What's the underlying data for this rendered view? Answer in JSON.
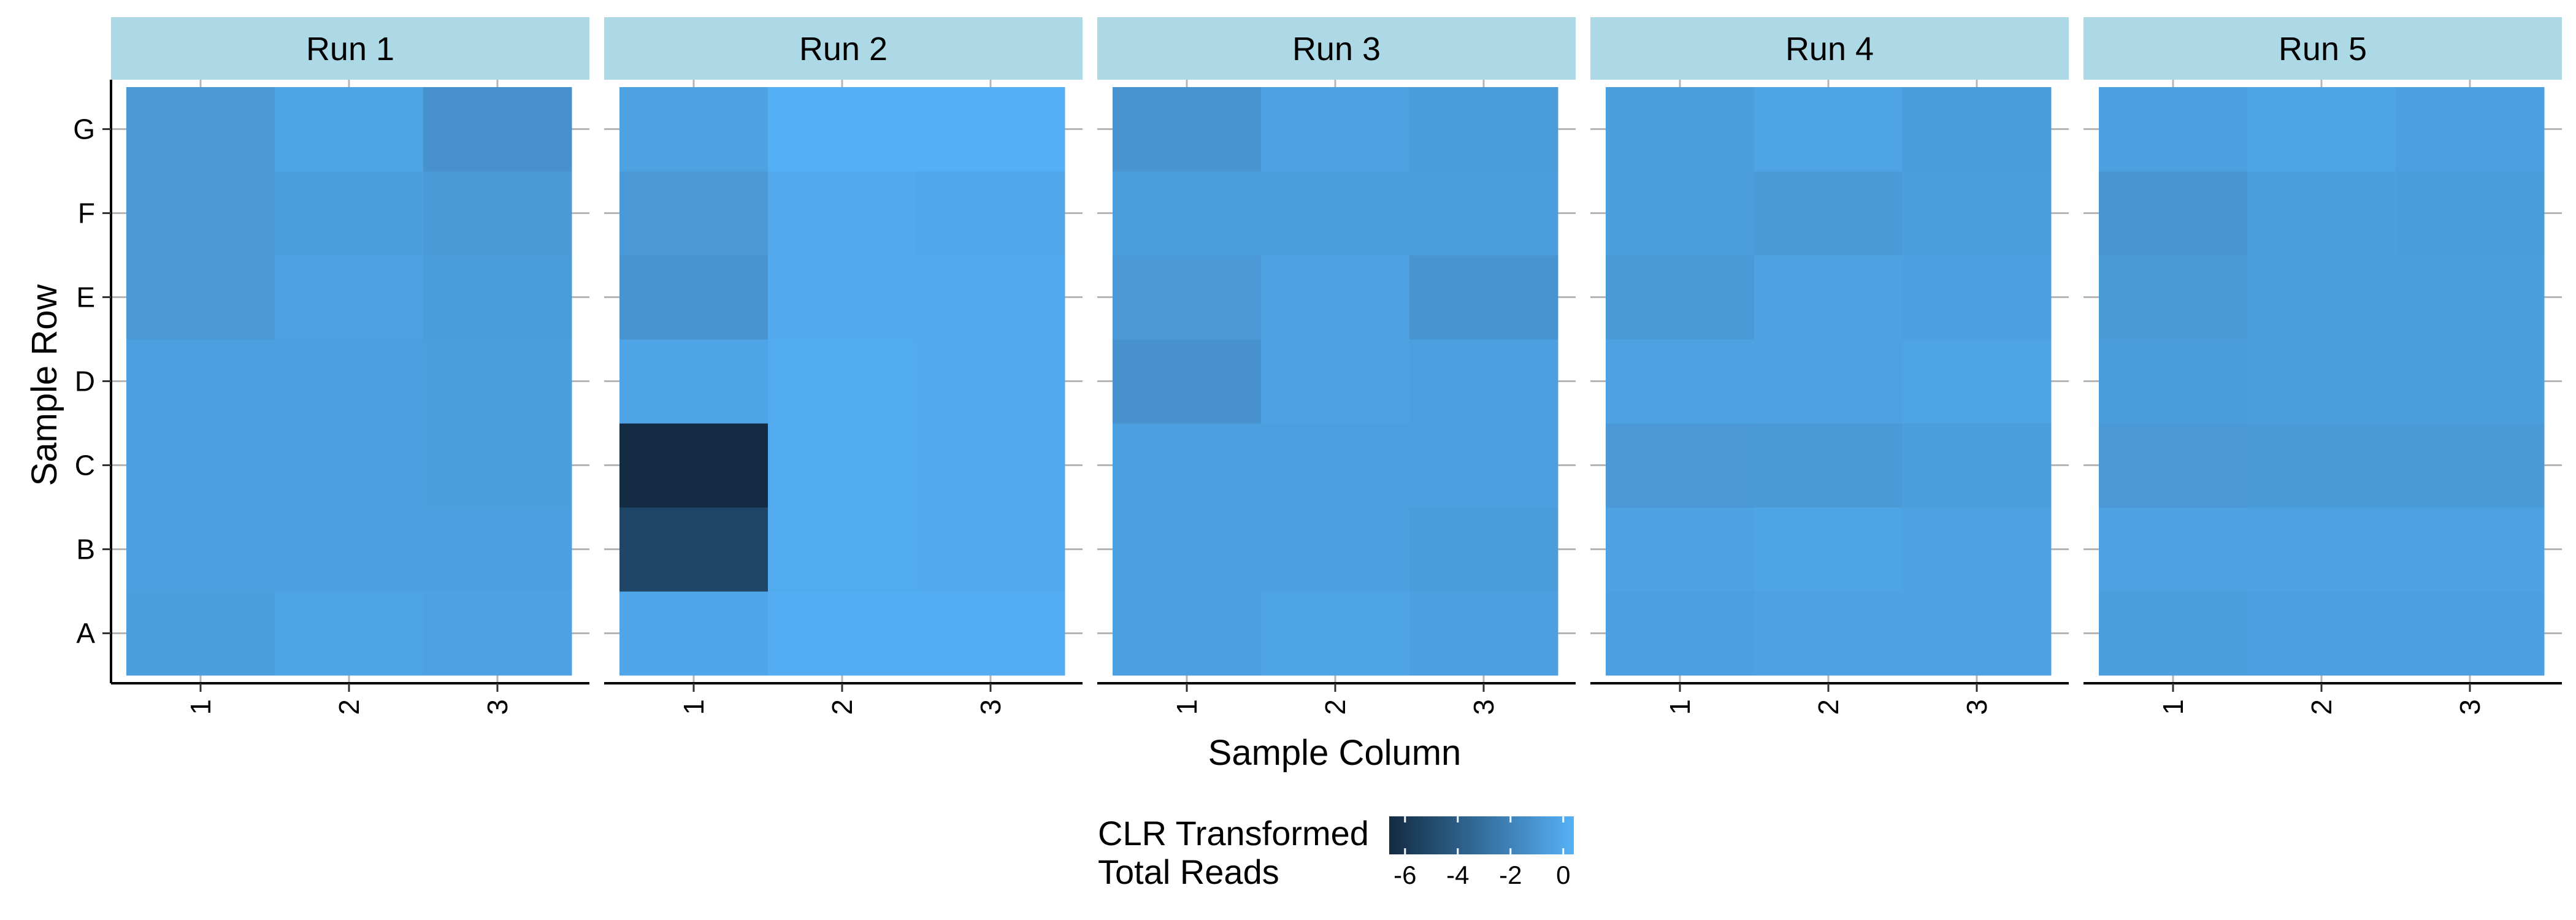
{
  "chart_data": {
    "type": "heatmap",
    "title": "",
    "xlabel": "Sample Column",
    "ylabel": "Sample Row",
    "panels": [
      "Run 1",
      "Run 2",
      "Run 3",
      "Run 4",
      "Run 5"
    ],
    "columns": [
      "1",
      "2",
      "3"
    ],
    "rows": [
      "A",
      "B",
      "C",
      "D",
      "E",
      "F",
      "G"
    ],
    "values": [
      [
        [
          -0.6,
          -0.3,
          -0.4
        ],
        [
          -0.5,
          -0.5,
          -0.5
        ],
        [
          -0.5,
          -0.5,
          -0.6
        ],
        [
          -0.5,
          -0.5,
          -0.6
        ],
        [
          -0.9,
          -0.4,
          -0.7
        ],
        [
          -0.9,
          -0.6,
          -0.8
        ],
        [
          -0.9,
          -0.3,
          -1.2
        ]
      ],
      [
        [
          -0.2,
          0.2,
          0.2
        ],
        [
          -5.2,
          0.1,
          0.0
        ],
        [
          -6.6,
          0.1,
          0.0
        ],
        [
          -0.3,
          0.1,
          0.0
        ],
        [
          -1.1,
          0.0,
          0.0
        ],
        [
          -0.9,
          0.0,
          -0.1
        ],
        [
          -0.4,
          0.3,
          0.3
        ]
      ],
      [
        [
          -0.5,
          -0.3,
          -0.5
        ],
        [
          -0.5,
          -0.5,
          -0.7
        ],
        [
          -0.5,
          -0.5,
          -0.5
        ],
        [
          -1.2,
          -0.4,
          -0.5
        ],
        [
          -0.9,
          -0.4,
          -1.1
        ],
        [
          -0.6,
          -0.6,
          -0.6
        ],
        [
          -1.1,
          -0.4,
          -0.7
        ]
      ],
      [
        [
          -0.5,
          -0.4,
          -0.4
        ],
        [
          -0.4,
          -0.3,
          -0.4
        ],
        [
          -0.9,
          -0.8,
          -0.6
        ],
        [
          -0.4,
          -0.4,
          -0.3
        ],
        [
          -0.8,
          -0.4,
          -0.5
        ],
        [
          -0.6,
          -0.8,
          -0.6
        ],
        [
          -0.6,
          -0.3,
          -0.7
        ]
      ],
      [
        [
          -0.6,
          -0.5,
          -0.5
        ],
        [
          -0.4,
          -0.4,
          -0.4
        ],
        [
          -0.9,
          -0.8,
          -0.8
        ],
        [
          -0.7,
          -0.6,
          -0.6
        ],
        [
          -0.8,
          -0.6,
          -0.6
        ],
        [
          -1.0,
          -0.6,
          -0.7
        ],
        [
          -0.5,
          -0.3,
          -0.5
        ]
      ]
    ],
    "color_scale": {
      "low": "#132b43",
      "high": "#56b1f7",
      "limits": [
        -6.6,
        0.4
      ]
    },
    "legend": {
      "title_lines": [
        "CLR Transformed",
        "Total Reads"
      ],
      "ticks": [
        -6,
        -4,
        -2,
        0
      ],
      "position": "bottom"
    },
    "strip_color": "#add8e6"
  }
}
